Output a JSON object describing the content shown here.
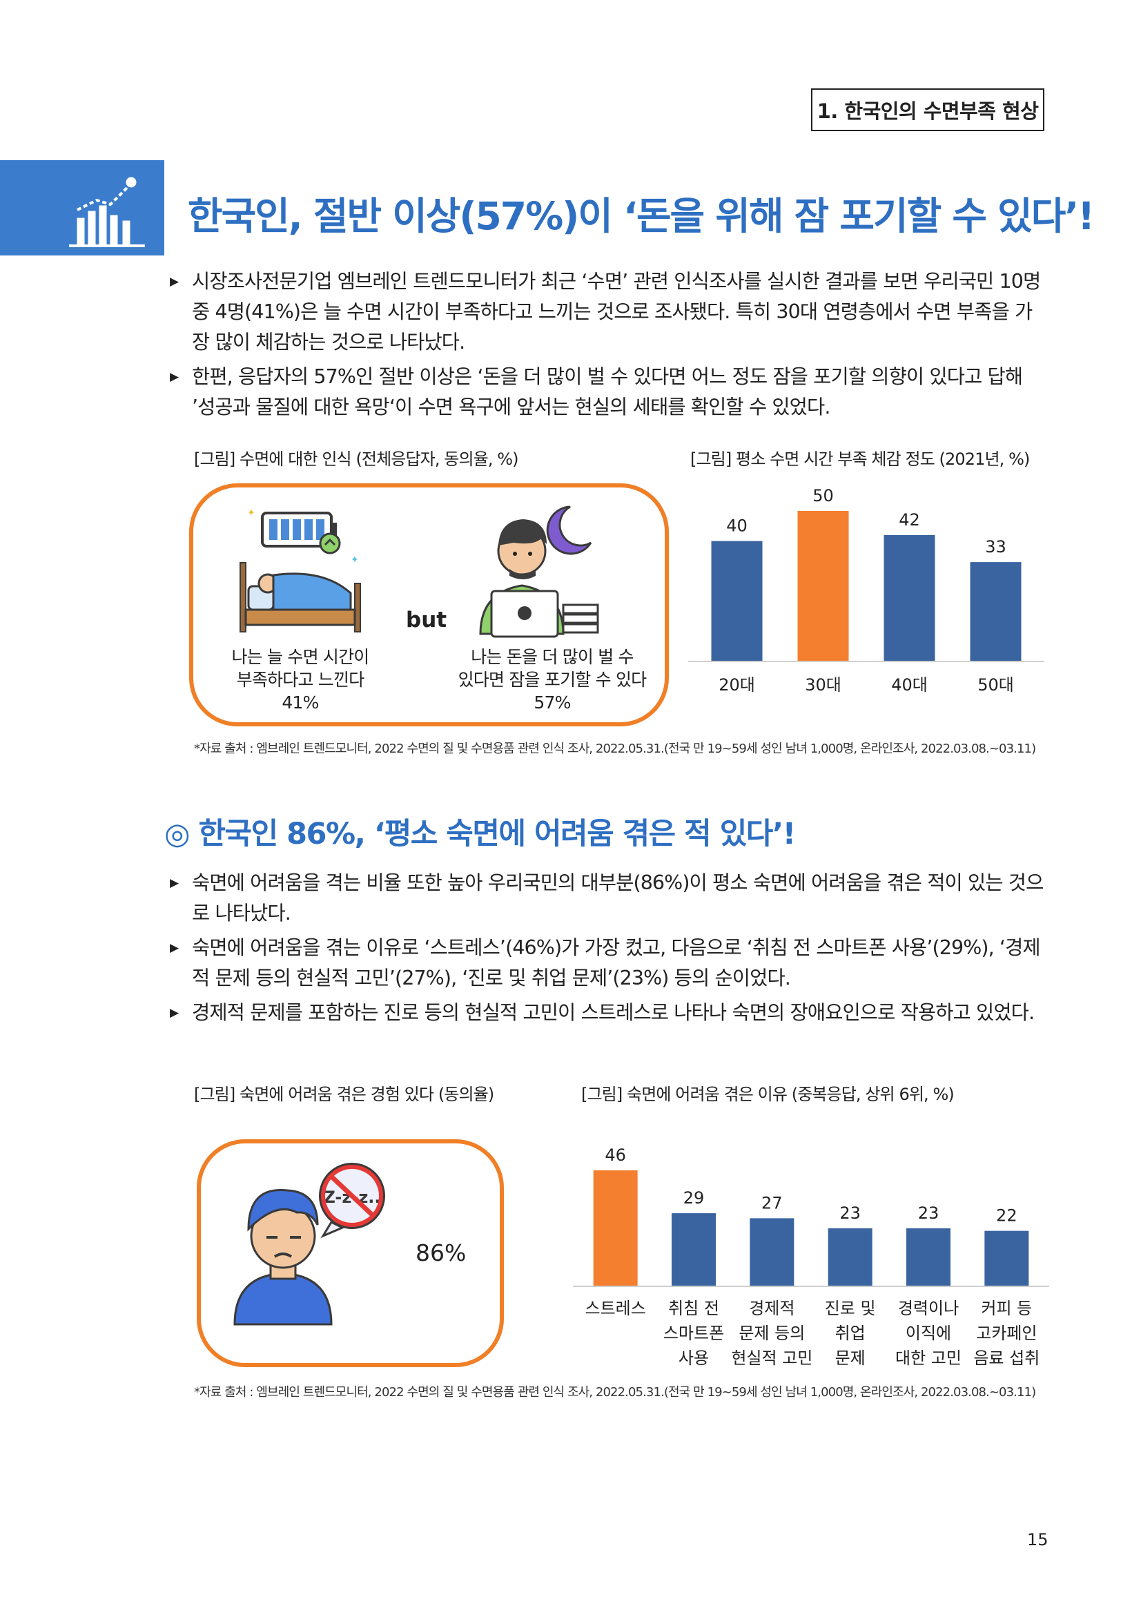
{
  "header": {
    "section_tag": "1. 한국인의 수면부족 현상"
  },
  "title1": "한국인, 절반 이상(57%)이 ‘돈을 위해 잠 포기할 수 있다’!",
  "bullets1": [
    "시장조사전문기업 엠브레인 트렌드모니터가 최근 ‘수면’ 관련 인식조사를 실시한 결과를 보면 우리국민 10명 중 4명(41%)은 늘 수면 시간이 부족하다고 느끼는 것으로 조사됐다. 특히 30대 연령층에서 수면 부족을 가장 많이 체감하는 것으로 나타났다.",
    "한편, 응답자의 57%인 절반 이상은 ‘돈을 더 많이 벌 수 있다면 어느 정도 잠을 포기할 의향이 있다고 답해 ’성공과 물질에 대한 욕망‘이 수면 욕구에 앞서는 현실의 세태를 확인할 수 있었다."
  ],
  "figure1": {
    "caption": "[그림] 수면에 대한 인식 (전체응답자, 동의율, %)",
    "left_text": [
      "나는 늘 수면 시간이",
      "부족하다고 느낀다",
      "41%"
    ],
    "connector": "but",
    "right_text": [
      "나는 돈을 더 많이 벌 수",
      "있다면 잠을 포기할 수 있다",
      "57%"
    ]
  },
  "figure2": {
    "caption": "[그림] 평소 수면 시간 부족 체감 정도 (2021년, %)"
  },
  "source1": "*자료 출처 : 엠브레인 트렌드모니터, 2022 수면의 질 및 수면용품 관련 인식 조사, 2022.05.31.(전국 만 19~59세 성인 남녀 1,000명, 온라인조사, 2022.03.08.~03.11)",
  "title2": "◎ 한국인 86%, ‘평소 숙면에 어려움 겪은 적 있다’!",
  "bullets2": [
    "숙면에 어려움을 격는 비율 또한 높아 우리국민의 대부분(86%)이 평소 숙면에 어려움을 겪은 적이 있는 것으로 나타났다.",
    "숙면에 어려움을 겪는 이유로 ‘스트레스’(46%)가 가장 컸고, 다음으로 ‘취침 전 스마트폰 사용’(29%), ‘경제적 문제 등의 현실적 고민’(27%), ‘진로 및 취업 문제’(23%) 등의 순이었다.",
    "경제적 문제를 포함하는 진로 등의 현실적 고민이 스트레스로 나타나 숙면의 장애요인으로 작용하고 있었다."
  ],
  "figure3": {
    "caption": "[그림] 숙면에 어려움 겪은 경험 있다 (동의율)",
    "value_text": "86%",
    "zzz": "Z-z-z.."
  },
  "figure4": {
    "caption": "[그림] 숙면에 어려움 겪은 이유 (중복응답, 상위 6위, %)"
  },
  "source2": "*자료 출처 : 엠브레인 트렌드모니터, 2022 수면의 질 및 수면용품 관련 인식 조사, 2022.05.31.(전국 만 19~59세 성인 남녀 1,000명, 온라인조사, 2022.03.08.~03.11)",
  "page_number": "15",
  "colors": {
    "accent_blue": "#2e6fc2",
    "bar_blue": "#3a64a0",
    "bar_orange": "#f47f2e",
    "frame_orange": "#f07f26"
  },
  "chart_data": [
    {
      "type": "bar",
      "title": "[그림] 평소 수면 시간 부족 체감 정도 (2021년, %)",
      "categories": [
        "20대",
        "30대",
        "40대",
        "50대"
      ],
      "values": [
        40,
        50,
        42,
        33
      ],
      "highlight_index": 1,
      "ylim": [
        0,
        50
      ],
      "grid": false
    },
    {
      "type": "bar",
      "title": "[그림] 숙면에 어려움 겪은 이유 (중복응답, 상위 6위, %)",
      "categories": [
        [
          "스트레스"
        ],
        [
          "취침 전",
          "스마트폰",
          "사용"
        ],
        [
          "경제적",
          "문제 등의",
          "현실적 고민"
        ],
        [
          "진로 및",
          "취업",
          "문제"
        ],
        [
          "경력이나",
          "이직에",
          "대한 고민"
        ],
        [
          "커피 등",
          "고카페인",
          "음료 섭취"
        ]
      ],
      "values": [
        46,
        29,
        27,
        23,
        23,
        22
      ],
      "highlight_index": 0,
      "ylim": [
        0,
        46
      ],
      "grid": false
    }
  ]
}
